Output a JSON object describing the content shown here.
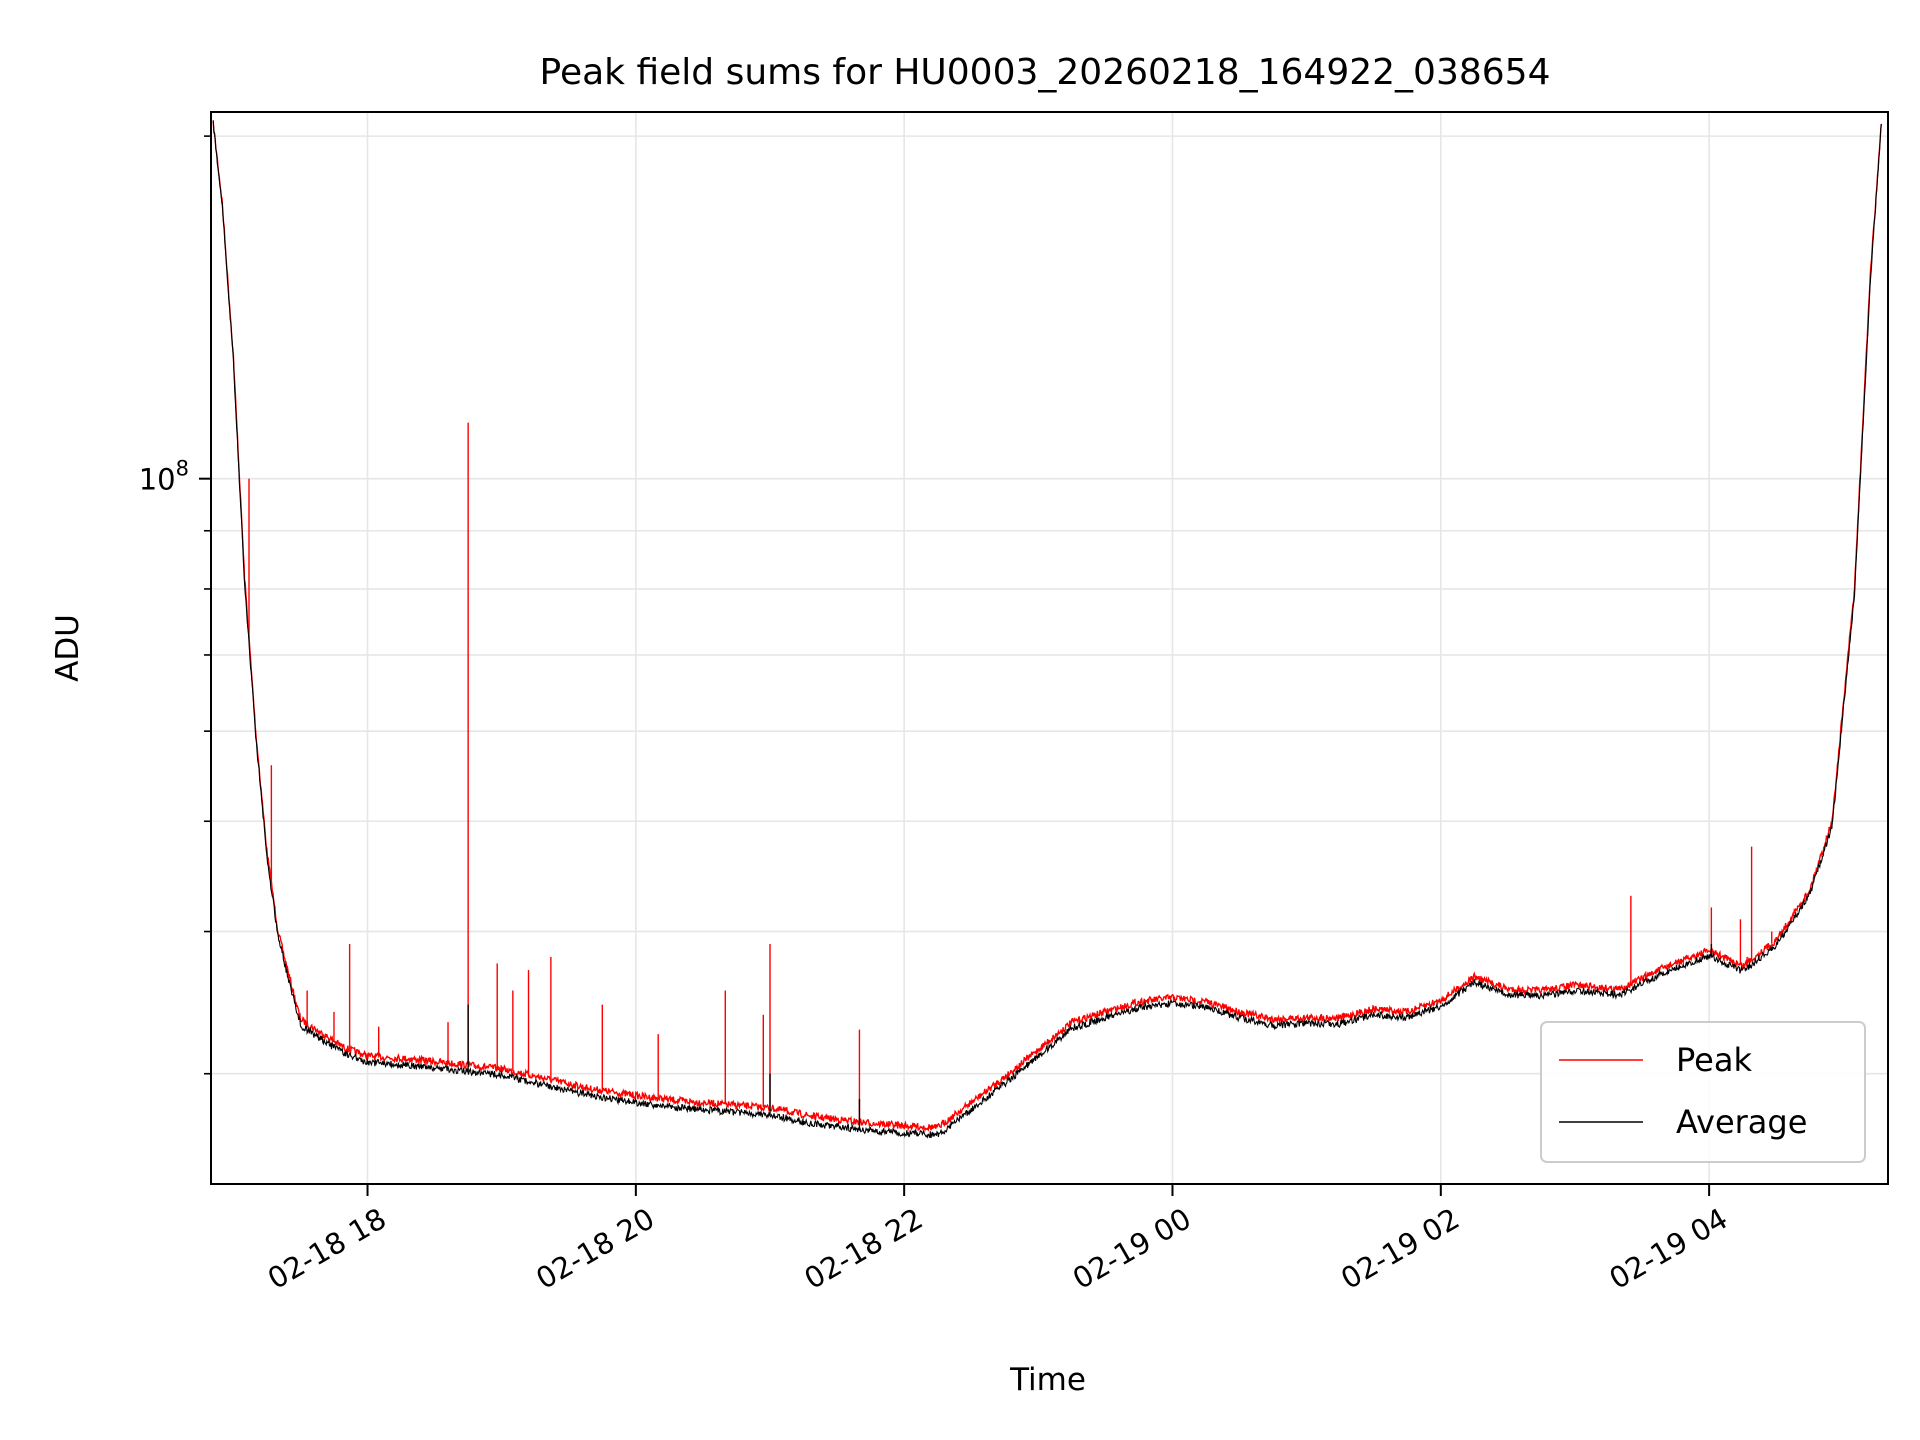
{
  "chart_data": {
    "type": "line",
    "title": "Peak field sums for HU0003_20260218_164922_038654",
    "xlabel": "Time",
    "ylabel": "ADU",
    "y_scale": "log",
    "x_axis_type": "datetime",
    "xlim": [
      "2026-02-18 16:50",
      "2026-02-19 05:20"
    ],
    "ylim": [
      24000000,
      210000000
    ],
    "x_ticks": [
      {
        "value": "2026-02-18 18:00",
        "label": "02-18 18"
      },
      {
        "value": "2026-02-18 20:00",
        "label": "02-18 20"
      },
      {
        "value": "2026-02-18 22:00",
        "label": "02-18 22"
      },
      {
        "value": "2026-02-19 00:00",
        "label": "02-19 00"
      },
      {
        "value": "2026-02-19 02:00",
        "label": "02-19 02"
      },
      {
        "value": "2026-02-19 04:00",
        "label": "02-19 04"
      }
    ],
    "y_major_ticks": [
      {
        "value": 100000000,
        "label_base": "10",
        "label_exp": "8"
      }
    ],
    "y_minor_ticks": [
      30000000,
      40000000,
      50000000,
      60000000,
      70000000,
      80000000,
      90000000,
      200000000
    ],
    "grid": true,
    "legend_position": "lower-right",
    "series": [
      {
        "name": "Peak",
        "color": "#ff0000",
        "points": [
          [
            "2026-02-18 16:51",
            205000000
          ],
          [
            "2026-02-18 16:55",
            175000000
          ],
          [
            "2026-02-18 17:00",
            128000000
          ],
          [
            "2026-02-18 17:05",
            82000000
          ],
          [
            "2026-02-18 17:10",
            60000000
          ],
          [
            "2026-02-18 17:15",
            47000000
          ],
          [
            "2026-02-18 17:20",
            40000000
          ],
          [
            "2026-02-18 17:25",
            36500000
          ],
          [
            "2026-02-18 17:30",
            33500000
          ],
          [
            "2026-02-18 17:40",
            32500000
          ],
          [
            "2026-02-18 17:50",
            31600000
          ],
          [
            "2026-02-18 18:00",
            31100000
          ],
          [
            "2026-02-18 18:20",
            30900000
          ],
          [
            "2026-02-18 18:40",
            30600000
          ],
          [
            "2026-02-18 19:00",
            30300000
          ],
          [
            "2026-02-18 19:20",
            29700000
          ],
          [
            "2026-02-18 19:40",
            29100000
          ],
          [
            "2026-02-18 20:00",
            28700000
          ],
          [
            "2026-02-18 20:20",
            28400000
          ],
          [
            "2026-02-18 20:40",
            28200000
          ],
          [
            "2026-02-18 21:00",
            28000000
          ],
          [
            "2026-02-18 21:20",
            27500000
          ],
          [
            "2026-02-18 21:40",
            27200000
          ],
          [
            "2026-02-18 22:00",
            27000000
          ],
          [
            "2026-02-18 22:15",
            26900000
          ],
          [
            "2026-02-18 22:30",
            28300000
          ],
          [
            "2026-02-18 22:45",
            29800000
          ],
          [
            "2026-02-18 23:00",
            31500000
          ],
          [
            "2026-02-18 23:15",
            33300000
          ],
          [
            "2026-02-18 23:30",
            34000000
          ],
          [
            "2026-02-18 23:45",
            34700000
          ],
          [
            "2026-02-19 00:00",
            35000000
          ],
          [
            "2026-02-19 00:15",
            34700000
          ],
          [
            "2026-02-19 00:30",
            34000000
          ],
          [
            "2026-02-19 00:45",
            33500000
          ],
          [
            "2026-02-19 01:00",
            33600000
          ],
          [
            "2026-02-19 01:15",
            33600000
          ],
          [
            "2026-02-19 01:30",
            34200000
          ],
          [
            "2026-02-19 01:45",
            34000000
          ],
          [
            "2026-02-19 02:00",
            34800000
          ],
          [
            "2026-02-19 02:15",
            36500000
          ],
          [
            "2026-02-19 02:30",
            35600000
          ],
          [
            "2026-02-19 02:45",
            35500000
          ],
          [
            "2026-02-19 03:00",
            35900000
          ],
          [
            "2026-02-19 03:20",
            35600000
          ],
          [
            "2026-02-19 03:40",
            37200000
          ],
          [
            "2026-02-19 04:00",
            38500000
          ],
          [
            "2026-02-19 04:15",
            37300000
          ],
          [
            "2026-02-19 04:30",
            39300000
          ],
          [
            "2026-02-19 04:45",
            43500000
          ],
          [
            "2026-02-19 04:55",
            50000000
          ],
          [
            "2026-02-19 05:05",
            80000000
          ],
          [
            "2026-02-19 05:12",
            150000000
          ],
          [
            "2026-02-19 05:17",
            205000000
          ]
        ],
        "spikes": [
          [
            "2026-02-18 17:07",
            100000000
          ],
          [
            "2026-02-18 17:17",
            56000000
          ],
          [
            "2026-02-18 17:33",
            35500000
          ],
          [
            "2026-02-18 17:45",
            34000000
          ],
          [
            "2026-02-18 17:52",
            39000000
          ],
          [
            "2026-02-18 18:05",
            33000000
          ],
          [
            "2026-02-18 18:36",
            33300000
          ],
          [
            "2026-02-18 18:45",
            112000000
          ],
          [
            "2026-02-18 18:58",
            37500000
          ],
          [
            "2026-02-18 19:05",
            35500000
          ],
          [
            "2026-02-18 19:12",
            37000000
          ],
          [
            "2026-02-18 19:22",
            38000000
          ],
          [
            "2026-02-18 19:45",
            34500000
          ],
          [
            "2026-02-18 20:10",
            32500000
          ],
          [
            "2026-02-18 20:40",
            35500000
          ],
          [
            "2026-02-18 20:57",
            33800000
          ],
          [
            "2026-02-18 21:00",
            39000000
          ],
          [
            "2026-02-18 21:40",
            32800000
          ],
          [
            "2026-02-19 03:25",
            43000000
          ],
          [
            "2026-02-19 03:50",
            38000000
          ],
          [
            "2026-02-19 04:01",
            42000000
          ],
          [
            "2026-02-19 04:14",
            41000000
          ],
          [
            "2026-02-19 04:17",
            38000000
          ],
          [
            "2026-02-19 04:19",
            47500000
          ],
          [
            "2026-02-19 04:28",
            40000000
          ]
        ]
      },
      {
        "name": "Average",
        "color": "#000000",
        "points": [
          [
            "2026-02-18 16:51",
            205000000
          ],
          [
            "2026-02-18 16:55",
            174000000
          ],
          [
            "2026-02-18 17:00",
            127000000
          ],
          [
            "2026-02-18 17:05",
            81000000
          ],
          [
            "2026-02-18 17:10",
            59500000
          ],
          [
            "2026-02-18 17:15",
            46500000
          ],
          [
            "2026-02-18 17:20",
            39600000
          ],
          [
            "2026-02-18 17:25",
            36100000
          ],
          [
            "2026-02-18 17:30",
            33100000
          ],
          [
            "2026-02-18 17:40",
            32100000
          ],
          [
            "2026-02-18 17:50",
            31200000
          ],
          [
            "2026-02-18 18:00",
            30700000
          ],
          [
            "2026-02-18 18:20",
            30500000
          ],
          [
            "2026-02-18 18:40",
            30200000
          ],
          [
            "2026-02-18 19:00",
            29900000
          ],
          [
            "2026-02-18 19:20",
            29300000
          ],
          [
            "2026-02-18 19:40",
            28700000
          ],
          [
            "2026-02-18 20:00",
            28300000
          ],
          [
            "2026-02-18 20:20",
            28000000
          ],
          [
            "2026-02-18 20:40",
            27800000
          ],
          [
            "2026-02-18 21:00",
            27600000
          ],
          [
            "2026-02-18 21:20",
            27100000
          ],
          [
            "2026-02-18 21:40",
            26800000
          ],
          [
            "2026-02-18 22:00",
            26600000
          ],
          [
            "2026-02-18 22:15",
            26500000
          ],
          [
            "2026-02-18 22:30",
            27900000
          ],
          [
            "2026-02-18 22:45",
            29400000
          ],
          [
            "2026-02-18 23:00",
            31100000
          ],
          [
            "2026-02-18 23:15",
            32900000
          ],
          [
            "2026-02-18 23:30",
            33600000
          ],
          [
            "2026-02-18 23:45",
            34300000
          ],
          [
            "2026-02-19 00:00",
            34600000
          ],
          [
            "2026-02-19 00:15",
            34300000
          ],
          [
            "2026-02-19 00:30",
            33600000
          ],
          [
            "2026-02-19 00:45",
            33100000
          ],
          [
            "2026-02-19 01:00",
            33200000
          ],
          [
            "2026-02-19 01:15",
            33200000
          ],
          [
            "2026-02-19 01:30",
            33800000
          ],
          [
            "2026-02-19 01:45",
            33600000
          ],
          [
            "2026-02-19 02:00",
            34400000
          ],
          [
            "2026-02-19 02:15",
            36100000
          ],
          [
            "2026-02-19 02:30",
            35200000
          ],
          [
            "2026-02-19 02:45",
            35100000
          ],
          [
            "2026-02-19 03:00",
            35500000
          ],
          [
            "2026-02-19 03:20",
            35200000
          ],
          [
            "2026-02-19 03:40",
            36800000
          ],
          [
            "2026-02-19 04:00",
            38100000
          ],
          [
            "2026-02-19 04:15",
            36900000
          ],
          [
            "2026-02-19 04:30",
            38900000
          ],
          [
            "2026-02-19 04:45",
            43100000
          ],
          [
            "2026-02-19 04:55",
            49500000
          ],
          [
            "2026-02-19 05:05",
            79000000
          ],
          [
            "2026-02-19 05:12",
            148000000
          ],
          [
            "2026-02-19 05:17",
            205000000
          ]
        ],
        "spikes": [
          [
            "2026-02-18 18:45",
            34500000
          ],
          [
            "2026-02-18 21:00",
            30000000
          ],
          [
            "2026-02-18 21:40",
            28500000
          ],
          [
            "2026-02-19 04:01",
            39000000
          ]
        ]
      }
    ]
  }
}
